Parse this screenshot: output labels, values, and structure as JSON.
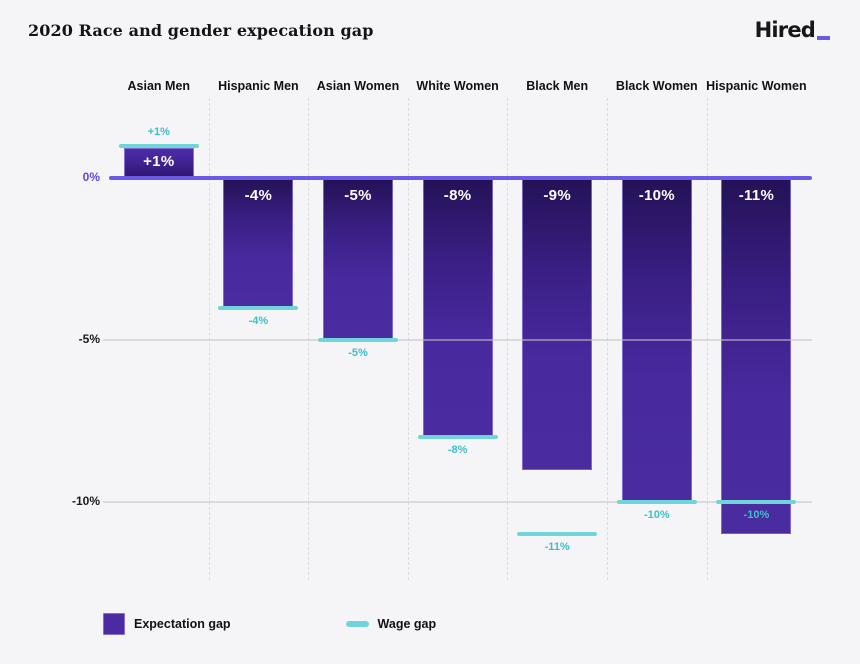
{
  "header": {
    "title": "2020 Race and gender expecation gap",
    "logo_text": "Hired"
  },
  "legend": {
    "expectation_label": "Expectation gap",
    "wage_label": "Wage gap"
  },
  "colors": {
    "background": "#f5f4f6",
    "bar_purple_dark": "#241257",
    "bar_purple": "#4a2ca1",
    "zero_axis_purple": "#6a5ae6",
    "wage_teal": "#70d5d8",
    "wage_label_teal": "#3fbfca",
    "logo_accent": "#6a5ae6",
    "gridline_gray": "#c4c2ca"
  },
  "chart_data": {
    "type": "bar",
    "categories": [
      "Asian Men",
      "Hispanic Men",
      "Asian Women",
      "White Women",
      "Black Men",
      "Black Women",
      "Hispanic Women"
    ],
    "series": [
      {
        "name": "Expectation gap",
        "values": [
          1,
          -4,
          -5,
          -8,
          -9,
          -10,
          -11
        ],
        "labels": [
          "+1%",
          "-4%",
          "-5%",
          "-8%",
          "-9%",
          "-10%",
          "-11%"
        ]
      },
      {
        "name": "Wage gap",
        "values": [
          1,
          -4,
          -5,
          -8,
          -11,
          -10,
          -10
        ],
        "labels": [
          "+1%",
          "-4%",
          "-5%",
          "-8%",
          "-11%",
          "-10%",
          "-10%"
        ]
      }
    ],
    "yticks": [
      {
        "label": "0%",
        "value": 0
      },
      {
        "label": "-5%",
        "value": -5
      },
      {
        "label": "-10%",
        "value": -10
      }
    ],
    "ylim": [
      -12.5,
      2.5
    ],
    "title": "2020 Race and gender expecation gap",
    "xlabel": "",
    "ylabel": "",
    "grid": "horizontal solid lines at -5% and -10%, dashed vertical column separators",
    "legend_position": "bottom-left",
    "unit": "percent"
  }
}
